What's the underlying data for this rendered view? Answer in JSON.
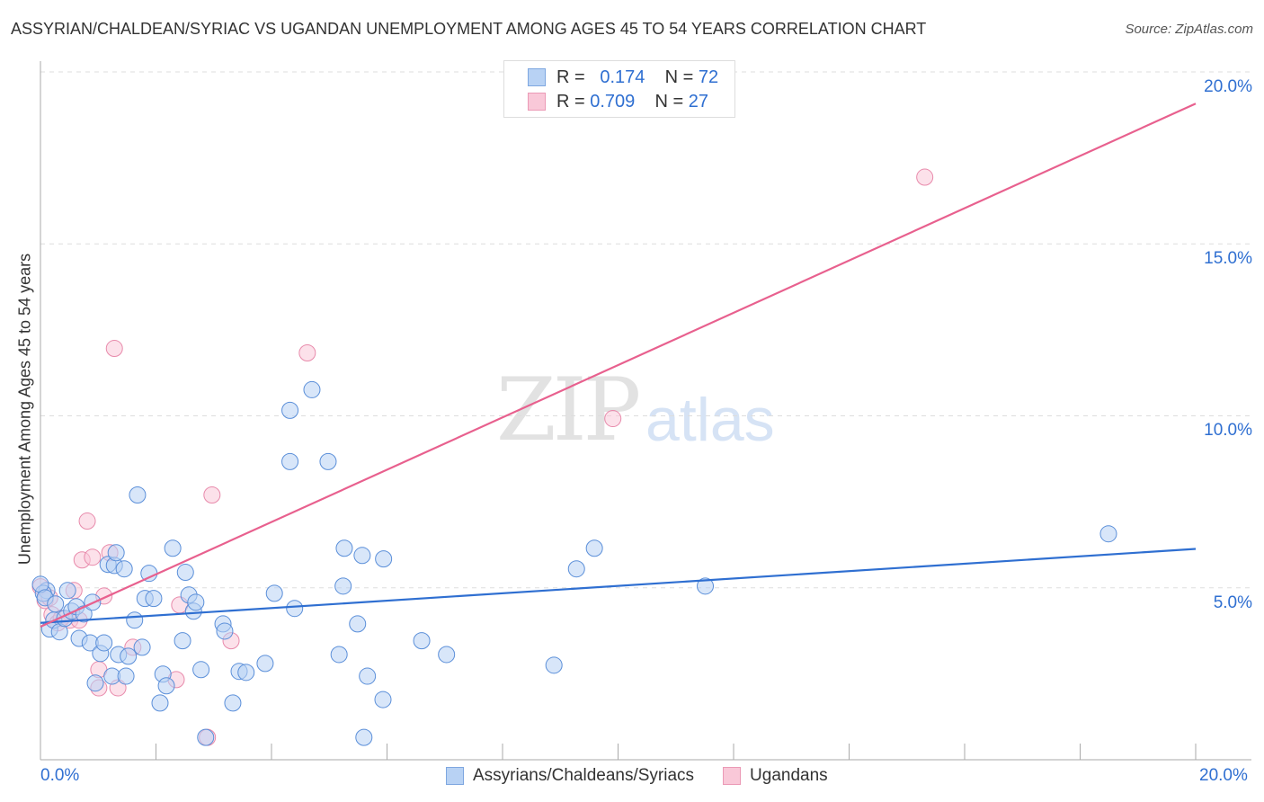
{
  "title": "ASSYRIAN/CHALDEAN/SYRIAC VS UGANDAN UNEMPLOYMENT AMONG AGES 45 TO 54 YEARS CORRELATION CHART",
  "source": "Source: ZipAtlas.com",
  "watermark": {
    "zip": "ZIP",
    "atlas": "atlas"
  },
  "colors": {
    "blue": "#2f6fd1",
    "pink": "#e8608e",
    "blue_fill": "#b8d2f4",
    "pink_fill": "#f9c8d8"
  },
  "legend_top": [
    {
      "r_label": "R =",
      "r": "0.174",
      "n_label": "N =",
      "n": "72"
    },
    {
      "r_label": "R =",
      "r": "0.709",
      "n_label": "N =",
      "n": "27"
    }
  ],
  "chart_data": {
    "type": "scatter",
    "title": "ASSYRIAN/CHALDEAN/SYRIAC VS UGANDAN UNEMPLOYMENT AMONG AGES 45 TO 54 YEARS CORRELATION CHART",
    "xlabel": "",
    "ylabel": "Unemployment Among Ages 45 to 54 years",
    "xlim": [
      0,
      20
    ],
    "ylim": [
      0,
      20
    ],
    "x_tick_labels": [
      "0.0%",
      "20.0%"
    ],
    "y_tick_labels": [
      "5.0%",
      "10.0%",
      "15.0%",
      "20.0%"
    ],
    "y_ticks": [
      5,
      10,
      15,
      20
    ],
    "grid": true,
    "legend": "bottom-center",
    "series": [
      {
        "name": "Assyrians/Chaldeans/Syriacs",
        "trend": [
          [
            0,
            3.98
          ],
          [
            20,
            6.13
          ]
        ],
        "points": [
          [
            0.11,
            4.92
          ],
          [
            0.05,
            4.84
          ],
          [
            0.16,
            3.8
          ],
          [
            0.23,
            4.06
          ],
          [
            0.33,
            3.72
          ],
          [
            0.42,
            4.11
          ],
          [
            0.47,
            4.92
          ],
          [
            0.54,
            4.32
          ],
          [
            0.62,
            4.45
          ],
          [
            0.67,
            3.53
          ],
          [
            0.75,
            4.24
          ],
          [
            0.86,
            3.4
          ],
          [
            0.9,
            4.58
          ],
          [
            0.95,
            2.23
          ],
          [
            1.04,
            3.09
          ],
          [
            1.1,
            3.4
          ],
          [
            1.17,
            5.68
          ],
          [
            1.24,
            2.43
          ],
          [
            1.28,
            5.65
          ],
          [
            1.31,
            6.02
          ],
          [
            1.35,
            3.06
          ],
          [
            1.45,
            5.55
          ],
          [
            1.48,
            2.43
          ],
          [
            1.52,
            3.01
          ],
          [
            1.63,
            4.06
          ],
          [
            1.68,
            7.7
          ],
          [
            1.76,
            3.27
          ],
          [
            1.81,
            4.69
          ],
          [
            1.88,
            5.42
          ],
          [
            1.96,
            4.69
          ],
          [
            2.07,
            1.65
          ],
          [
            2.12,
            2.49
          ],
          [
            2.18,
            2.15
          ],
          [
            2.29,
            6.15
          ],
          [
            2.46,
            3.46
          ],
          [
            2.51,
            5.45
          ],
          [
            2.57,
            4.79
          ],
          [
            2.65,
            4.32
          ],
          [
            2.69,
            4.58
          ],
          [
            2.78,
            2.62
          ],
          [
            2.86,
            0.65
          ],
          [
            3.16,
            3.95
          ],
          [
            3.19,
            3.74
          ],
          [
            3.33,
            1.65
          ],
          [
            3.44,
            2.57
          ],
          [
            3.56,
            2.54
          ],
          [
            3.89,
            2.8
          ],
          [
            4.05,
            4.84
          ],
          [
            4.32,
            10.16
          ],
          [
            4.32,
            8.67
          ],
          [
            4.4,
            4.4
          ],
          [
            4.7,
            10.76
          ],
          [
            4.98,
            8.67
          ],
          [
            5.17,
            3.06
          ],
          [
            5.24,
            5.05
          ],
          [
            5.26,
            6.15
          ],
          [
            5.49,
            3.95
          ],
          [
            5.57,
            5.94
          ],
          [
            5.6,
            0.65
          ],
          [
            5.66,
            2.43
          ],
          [
            5.93,
            1.75
          ],
          [
            5.94,
            5.84
          ],
          [
            6.6,
            3.46
          ],
          [
            7.03,
            3.06
          ],
          [
            8.89,
            2.75
          ],
          [
            9.28,
            5.55
          ],
          [
            9.59,
            6.15
          ],
          [
            11.51,
            5.05
          ],
          [
            18.49,
            6.57
          ],
          [
            0.0,
            5.1
          ],
          [
            0.08,
            4.71
          ],
          [
            0.26,
            4.53
          ]
        ]
      },
      {
        "name": "Ugandans",
        "trend": [
          [
            0,
            3.87
          ],
          [
            20,
            19.08
          ]
        ],
        "points": [
          [
            0.0,
            5.03
          ],
          [
            0.08,
            4.63
          ],
          [
            0.2,
            4.22
          ],
          [
            0.3,
            3.98
          ],
          [
            0.51,
            4.06
          ],
          [
            0.67,
            4.06
          ],
          [
            0.58,
            4.92
          ],
          [
            0.72,
            5.81
          ],
          [
            0.81,
            6.94
          ],
          [
            0.9,
            5.89
          ],
          [
            1.01,
            2.62
          ],
          [
            1.01,
            2.09
          ],
          [
            1.1,
            4.76
          ],
          [
            1.2,
            6.02
          ],
          [
            1.28,
            11.96
          ],
          [
            1.34,
            2.09
          ],
          [
            1.6,
            3.27
          ],
          [
            2.35,
            2.33
          ],
          [
            2.41,
            4.5
          ],
          [
            2.89,
            0.65
          ],
          [
            2.97,
            7.7
          ],
          [
            3.3,
            3.46
          ],
          [
            4.62,
            11.83
          ],
          [
            9.91,
            9.92
          ],
          [
            15.31,
            16.94
          ],
          [
            0.16,
            4.71
          ],
          [
            0.36,
            4.11
          ]
        ]
      }
    ]
  }
}
